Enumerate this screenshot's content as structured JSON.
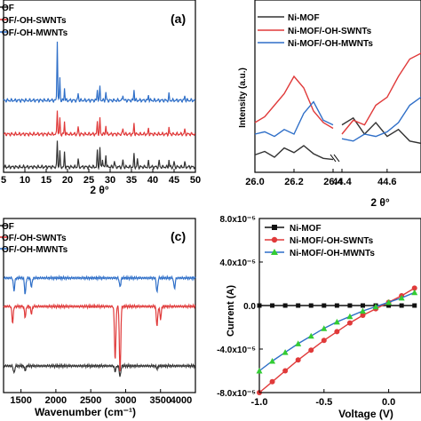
{
  "colors": {
    "ni_mof": "#333333",
    "swnt": "#e03a3a",
    "mwnt": "#2f6fc8",
    "mwnt_iv": "#33cc33",
    "axis": "#000000"
  },
  "chart_data": [
    {
      "panel": "a",
      "type": "line",
      "title": "(a)",
      "xlabel": "2 θ°",
      "ylabel": "",
      "xlim": [
        5,
        50
      ],
      "xticks": [
        "5",
        "10",
        "15",
        "20",
        "25",
        "30",
        "35",
        "40",
        "45",
        "50"
      ],
      "legend": {
        "placement": "top-left",
        "entries": [
          "OF",
          "OF/-OH-SWNTs",
          "OF/-OH-MWNTs"
        ]
      },
      "series": [
        {
          "name": "OF",
          "color": "#333333",
          "baseline": 0,
          "peaks": [
            [
              17.6,
              30
            ],
            [
              18.2,
              18
            ],
            [
              19.3,
              16
            ],
            [
              22.5,
              9
            ],
            [
              27.0,
              18
            ],
            [
              27.6,
              22
            ],
            [
              28.2,
              10
            ],
            [
              29.0,
              14
            ],
            [
              31.0,
              7
            ],
            [
              33.0,
              8
            ],
            [
              35.6,
              14
            ],
            [
              36.4,
              9
            ],
            [
              39.0,
              6
            ],
            [
              41.5,
              7
            ],
            [
              43.8,
              8
            ],
            [
              45.0,
              6
            ],
            [
              47.5,
              5
            ]
          ]
        },
        {
          "name": "OF/-OH-SWNTs",
          "color": "#e03a3a",
          "baseline": 38,
          "peaks": [
            [
              17.6,
              28
            ],
            [
              18.2,
              18
            ],
            [
              19.3,
              14
            ],
            [
              22.5,
              8
            ],
            [
              27.0,
              14
            ],
            [
              27.6,
              18
            ],
            [
              29.0,
              10
            ],
            [
              33.0,
              7
            ],
            [
              35.6,
              12
            ],
            [
              39.0,
              6
            ],
            [
              43.8,
              7
            ],
            [
              47.5,
              5
            ]
          ]
        },
        {
          "name": "OF/-OH-MWNTs",
          "color": "#2f6fc8",
          "baseline": 72,
          "peaks": [
            [
              17.6,
              68
            ],
            [
              18.2,
              26
            ],
            [
              19.3,
              14
            ],
            [
              22.5,
              8
            ],
            [
              27.0,
              12
            ],
            [
              27.6,
              16
            ],
            [
              29.0,
              9
            ],
            [
              33.0,
              7
            ],
            [
              35.6,
              12
            ],
            [
              39.0,
              6
            ],
            [
              43.8,
              7
            ],
            [
              47.5,
              5
            ]
          ]
        }
      ]
    },
    {
      "panel": "b",
      "type": "line",
      "title": "",
      "xlabel": "2 θ°",
      "ylabel": "Intensity (a.u.)",
      "broken_axis": true,
      "segments": [
        {
          "xlim": [
            26.0,
            26.4
          ],
          "xticks": [
            "26.0",
            "26.2",
            "26.4"
          ]
        },
        {
          "xlim": [
            44.4,
            44.75
          ],
          "xticks": [
            "44.4",
            "44.6",
            "4"
          ]
        }
      ],
      "legend": {
        "placement": "top-right",
        "entries": [
          "Ni-MOF",
          "Ni-MOF/-OH-SWNTs",
          "Ni-MOF/-OH-MWNTs"
        ]
      },
      "series": [
        {
          "name": "Ni-MOF",
          "color": "#333333",
          "seg1": [
            [
              26.0,
              12
            ],
            [
              26.05,
              15
            ],
            [
              26.1,
              10
            ],
            [
              26.15,
              18
            ],
            [
              26.2,
              14
            ],
            [
              26.25,
              20
            ],
            [
              26.3,
              13
            ],
            [
              26.35,
              9
            ],
            [
              26.4,
              8
            ]
          ],
          "seg2": [
            [
              44.4,
              38
            ],
            [
              44.45,
              44
            ],
            [
              44.5,
              30
            ],
            [
              44.55,
              40
            ],
            [
              44.6,
              28
            ],
            [
              44.65,
              34
            ],
            [
              44.7,
              24
            ],
            [
              44.75,
              22
            ]
          ]
        },
        {
          "name": "Ni-MOF/-OH-SWNTs",
          "color": "#e03a3a",
          "seg1": [
            [
              26.0,
              40
            ],
            [
              26.05,
              45
            ],
            [
              26.1,
              55
            ],
            [
              26.15,
              65
            ],
            [
              26.2,
              80
            ],
            [
              26.25,
              70
            ],
            [
              26.3,
              50
            ],
            [
              26.35,
              40
            ],
            [
              26.4,
              35
            ]
          ],
          "seg2": [
            [
              44.4,
              30
            ],
            [
              44.45,
              42
            ],
            [
              44.5,
              38
            ],
            [
              44.55,
              55
            ],
            [
              44.6,
              62
            ],
            [
              44.65,
              80
            ],
            [
              44.7,
              95
            ],
            [
              44.75,
              100
            ]
          ]
        },
        {
          "name": "Ni-MOF/-OH-MWNTs",
          "color": "#2f6fc8",
          "seg1": [
            [
              26.0,
              30
            ],
            [
              26.05,
              32
            ],
            [
              26.1,
              28
            ],
            [
              26.15,
              34
            ],
            [
              26.2,
              30
            ],
            [
              26.25,
              48
            ],
            [
              26.3,
              58
            ],
            [
              26.35,
              42
            ],
            [
              26.4,
              38
            ]
          ],
          "seg2": [
            [
              44.4,
              26
            ],
            [
              44.45,
              24
            ],
            [
              44.5,
              30
            ],
            [
              44.55,
              28
            ],
            [
              44.6,
              32
            ],
            [
              44.65,
              40
            ],
            [
              44.7,
              55
            ],
            [
              44.75,
              62
            ]
          ]
        }
      ]
    },
    {
      "panel": "c",
      "type": "line",
      "title": "(c)",
      "xlabel": "Wavenumber (cm⁻¹)",
      "ylabel": "",
      "xlim": [
        1250,
        4000
      ],
      "xticks": [
        "1500",
        "2000",
        "2500",
        "3000",
        "3500",
        "4000"
      ],
      "legend": {
        "placement": "top-left",
        "entries": [
          "OF",
          "OF/-OH-SWNTs",
          "OF/-OH-MWNTs"
        ]
      },
      "series": [
        {
          "name": "OF",
          "color": "#333333",
          "baseline": 0,
          "dips": [
            [
              1400,
              8
            ],
            [
              1560,
              5
            ],
            [
              2850,
              6
            ],
            [
              2920,
              12
            ],
            [
              3450,
              3
            ]
          ]
        },
        {
          "name": "OF/-OH-SWNTs",
          "color": "#e03a3a",
          "baseline": 60,
          "dips": [
            [
              1380,
              18
            ],
            [
              1560,
              12
            ],
            [
              1650,
              8
            ],
            [
              2850,
              60
            ],
            [
              2920,
              75
            ],
            [
              3450,
              22
            ],
            [
              3500,
              14
            ]
          ]
        },
        {
          "name": "OF/-OH-MWNTs",
          "color": "#2f6fc8",
          "baseline": 130,
          "dips": [
            [
              1400,
              14
            ],
            [
              1560,
              18
            ],
            [
              1650,
              10
            ],
            [
              2920,
              10
            ],
            [
              3450,
              16
            ],
            [
              3700,
              12
            ]
          ]
        }
      ]
    },
    {
      "panel": "d",
      "type": "line",
      "title": "",
      "xlabel": "Voltage (V)",
      "ylabel": "Current (A)",
      "xlim": [
        -1.0,
        0.25
      ],
      "ylim": [
        -8e-05,
        8e-05
      ],
      "xticks": [
        "-1.0",
        "-0.5",
        "0.0"
      ],
      "yticks": [
        "8.0x10⁻⁵",
        "4.0x10⁻⁵",
        "0.0",
        "-4.0x10⁻⁵",
        "-8.0x10⁻⁵"
      ],
      "legend": {
        "placement": "top-right",
        "entries": [
          "Ni-MOF",
          "Ni-MOF/-OH-SWNTs",
          "Ni-MOF/-OH-MWNTs"
        ]
      },
      "series": [
        {
          "name": "Ni-MOF",
          "color": "#111111",
          "marker": "square",
          "x": [
            -1.0,
            -0.9,
            -0.8,
            -0.7,
            -0.6,
            -0.5,
            -0.4,
            -0.3,
            -0.2,
            -0.1,
            0.0,
            0.1,
            0.2
          ],
          "y": [
            0,
            0,
            0,
            0,
            0,
            0,
            0,
            0,
            0,
            0,
            0,
            0,
            0
          ]
        },
        {
          "name": "Ni-MOF/-OH-SWNTs",
          "color": "#e03a3a",
          "marker": "circle",
          "x": [
            -1.0,
            -0.9,
            -0.8,
            -0.7,
            -0.6,
            -0.5,
            -0.4,
            -0.3,
            -0.2,
            -0.1,
            0.0,
            0.1,
            0.2
          ],
          "y": [
            -8e-05,
            -7e-05,
            -6e-05,
            -5e-05,
            -4.1e-05,
            -3.2e-05,
            -2.4e-05,
            -1.6e-05,
            -9e-06,
            -3e-06,
            3e-06,
            9e-06,
            1.6e-05
          ]
        },
        {
          "name": "Ni-MOF/-OH-MWNTs",
          "color": "#33cc33",
          "line_color": "#2f6fc8",
          "marker": "triangle",
          "x": [
            -1.0,
            -0.9,
            -0.8,
            -0.7,
            -0.6,
            -0.5,
            -0.4,
            -0.3,
            -0.2,
            -0.1,
            0.0,
            0.1,
            0.2
          ],
          "y": [
            -6e-05,
            -5.1e-05,
            -4.3e-05,
            -3.5e-05,
            -2.8e-05,
            -2.1e-05,
            -1.5e-05,
            -1e-05,
            -5e-06,
            -1e-06,
            3e-06,
            7e-06,
            1.2e-05
          ]
        }
      ]
    }
  ]
}
